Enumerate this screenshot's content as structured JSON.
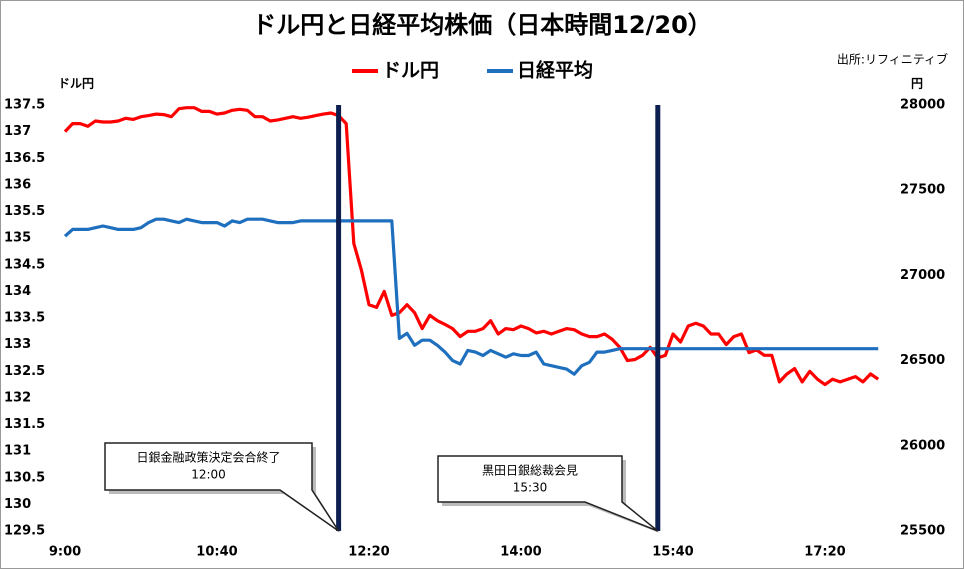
{
  "chart_data": {
    "type": "line",
    "title": "ドル円と日経平均株価（日本時間12/20）",
    "source": "出所:リフィニティブ",
    "y_label": "ドル円",
    "y2_label": "円",
    "legend": "top",
    "x": [
      540,
      545,
      550,
      555,
      560,
      565,
      570,
      575,
      580,
      585,
      590,
      595,
      600,
      605,
      610,
      615,
      620,
      625,
      630,
      635,
      640,
      645,
      650,
      655,
      660,
      665,
      670,
      675,
      680,
      685,
      690,
      695,
      700,
      705,
      710,
      715,
      720,
      725,
      730,
      735,
      740,
      745,
      750,
      755,
      760,
      765,
      770,
      775,
      780,
      785,
      790,
      795,
      800,
      805,
      810,
      815,
      820,
      825,
      830,
      835,
      840,
      845,
      850,
      855,
      860,
      865,
      870,
      875,
      880,
      885,
      890,
      895,
      900,
      905,
      910,
      915,
      920,
      925,
      930,
      935,
      940,
      945,
      950,
      955,
      960,
      965,
      970,
      975,
      980,
      985,
      990,
      995,
      1000,
      1005,
      1010,
      1015,
      1020,
      1025,
      1030,
      1035,
      1040,
      1045,
      1050,
      1055,
      1060,
      1065,
      1070,
      1075
    ],
    "xlim": [
      540,
      1080
    ],
    "xticks": [
      {
        "value": 540,
        "label": "9:00"
      },
      {
        "value": 640,
        "label": "10:40"
      },
      {
        "value": 740,
        "label": "12:20"
      },
      {
        "value": 840,
        "label": "14:00"
      },
      {
        "value": 940,
        "label": "15:40"
      },
      {
        "value": 1040,
        "label": "17:20"
      }
    ],
    "ylim": [
      129.5,
      137.5
    ],
    "yticks": [
      129.5,
      130,
      130.5,
      131,
      131.5,
      132,
      132.5,
      133,
      133.5,
      134,
      134.5,
      135,
      135.5,
      136,
      136.5,
      137,
      137.5
    ],
    "y2lim": [
      25500,
      28000
    ],
    "y2ticks": [
      25500,
      26000,
      26500,
      27000,
      27500,
      28000
    ],
    "series": [
      {
        "name": "ドル円",
        "color": "#ff0000",
        "values": [
          137.0,
          137.15,
          137.15,
          137.1,
          137.2,
          137.18,
          137.18,
          137.2,
          137.25,
          137.23,
          137.28,
          137.3,
          137.33,
          137.32,
          137.28,
          137.43,
          137.45,
          137.45,
          137.38,
          137.38,
          137.33,
          137.35,
          137.4,
          137.42,
          137.4,
          137.28,
          137.28,
          137.2,
          137.22,
          137.25,
          137.28,
          137.25,
          137.27,
          137.3,
          137.33,
          137.35,
          137.3,
          137.15,
          134.9,
          134.4,
          133.75,
          133.7,
          134.0,
          133.55,
          133.6,
          133.75,
          133.6,
          133.3,
          133.55,
          133.45,
          133.38,
          133.3,
          133.15,
          133.25,
          133.25,
          133.3,
          133.45,
          133.2,
          133.3,
          133.28,
          133.35,
          133.3,
          133.22,
          133.25,
          133.2,
          133.25,
          133.3,
          133.28,
          133.2,
          133.15,
          133.15,
          133.2,
          133.1,
          132.95,
          132.7,
          132.72,
          132.8,
          132.95,
          132.75,
          132.8,
          133.2,
          133.05,
          133.35,
          133.4,
          133.35,
          133.2,
          133.2,
          133.0,
          133.15,
          133.2,
          132.85,
          132.9,
          132.8,
          132.8,
          132.3,
          132.45,
          132.55,
          132.3,
          132.5,
          132.35,
          132.25,
          132.35,
          132.3,
          132.35,
          132.4,
          132.3,
          132.45,
          132.35
        ]
      },
      {
        "name": "日経平均",
        "color": "#1f6fbf",
        "axis": "y2",
        "values": [
          27230,
          27270,
          27270,
          27270,
          27280,
          27290,
          27280,
          27270,
          27270,
          27270,
          27280,
          27310,
          27330,
          27330,
          27320,
          27310,
          27330,
          27320,
          27310,
          27310,
          27310,
          27290,
          27320,
          27310,
          27330,
          27330,
          27330,
          27320,
          27310,
          27310,
          27310,
          27320,
          27320,
          27320,
          27320,
          27320,
          27320,
          27320,
          27320,
          27320,
          27320,
          27320,
          27320,
          27320,
          26630,
          26660,
          26590,
          26620,
          26620,
          26590,
          26550,
          26500,
          26480,
          26560,
          26550,
          26530,
          26560,
          26540,
          26520,
          26540,
          26530,
          26530,
          26550,
          26480,
          26470,
          26460,
          26450,
          26420,
          26470,
          26490,
          26550,
          26550,
          26560,
          26570,
          26570,
          26570,
          26570,
          26570,
          26570,
          26570,
          26570,
          26570,
          26570,
          26570,
          26570,
          26570,
          26570,
          26570,
          26570,
          26570,
          26570,
          26570,
          26570,
          26570,
          26570,
          26570,
          26570,
          26570,
          26570,
          26570,
          26570,
          26570,
          26570,
          26570,
          26570,
          26570,
          26570,
          26570
        ]
      }
    ],
    "annotations": [
      {
        "text": "日銀金融政策決定会合終了",
        "time": "12:00",
        "x": 720
      },
      {
        "text": "黒田日銀総裁会見",
        "time": "15:30",
        "x": 930
      }
    ]
  }
}
